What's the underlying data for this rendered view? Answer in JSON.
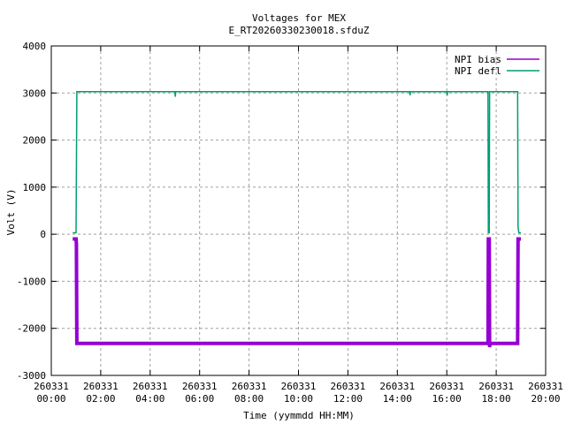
{
  "chart_data": {
    "type": "line",
    "title": "Voltages for MEX",
    "subtitle": "E_RT20260330230018.sfduZ",
    "xlabel": "Time (yymmdd HH:MM)",
    "ylabel": "Volt (V)",
    "xlim": [
      "260331 00:00",
      "260331 20:00"
    ],
    "ylim": [
      -3000,
      4000
    ],
    "yticks": [
      -3000,
      -2000,
      -1000,
      0,
      1000,
      2000,
      3000,
      4000
    ],
    "xticks": [
      "260331 00:00",
      "260331 02:00",
      "260331 04:00",
      "260331 06:00",
      "260331 08:00",
      "260331 10:00",
      "260331 12:00",
      "260331 14:00",
      "260331 16:00",
      "260331 18:00",
      "260331 20:00"
    ],
    "grid": true,
    "legend_position": "top-right",
    "series": [
      {
        "name": "NPI bias",
        "color": "#9400d3",
        "points": [
          [
            "260331 00:52",
            -100
          ],
          [
            "260331 01:00",
            -100
          ],
          [
            "260331 01:01",
            -200
          ],
          [
            "260331 01:02",
            -2320
          ],
          [
            "260331 17:40",
            -2320
          ],
          [
            "260331 17:41",
            -100
          ],
          [
            "260331 17:43",
            -100
          ],
          [
            "260331 17:44",
            -2400
          ],
          [
            "260331 17:45",
            -2320
          ],
          [
            "260331 18:52",
            -2320
          ],
          [
            "260331 18:53",
            -100
          ],
          [
            "260331 19:00",
            -100
          ]
        ]
      },
      {
        "name": "NPI defl",
        "color": "#009e73",
        "points": [
          [
            "260331 00:52",
            30
          ],
          [
            "260331 01:00",
            30
          ],
          [
            "260331 01:02",
            3030
          ],
          [
            "260331 05:00",
            3030
          ],
          [
            "260331 05:01",
            2920
          ],
          [
            "260331 05:02",
            3030
          ],
          [
            "260331 14:30",
            3030
          ],
          [
            "260331 14:31",
            2950
          ],
          [
            "260331 14:32",
            3030
          ],
          [
            "260331 16:00",
            3030
          ],
          [
            "260331 16:01",
            2950
          ],
          [
            "260331 16:02",
            3030
          ],
          [
            "260331 17:40",
            3030
          ],
          [
            "260331 17:41",
            30
          ],
          [
            "260331 17:43",
            30
          ],
          [
            "260331 17:44",
            3030
          ],
          [
            "260331 18:52",
            3030
          ],
          [
            "260331 18:53",
            150
          ],
          [
            "260331 18:55",
            30
          ],
          [
            "260331 19:00",
            30
          ]
        ]
      }
    ]
  }
}
